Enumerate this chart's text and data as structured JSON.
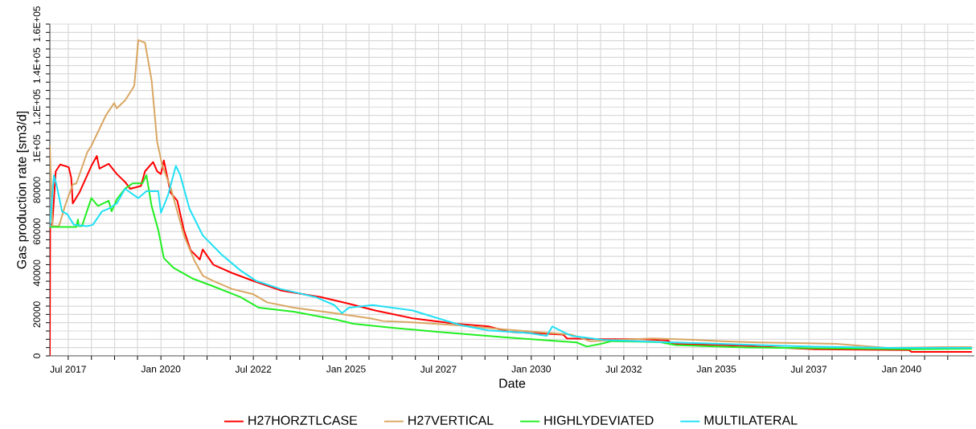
{
  "chart_data": {
    "type": "line",
    "xlabel": "Date",
    "ylabel": "Gas production rate [sm3/d]",
    "xlim": [
      "2017-01-01",
      "2041-12-20"
    ],
    "xticks": [
      {
        "value": "2017-07-01",
        "label": "Jul 2017"
      },
      {
        "value": "2018-02-15",
        "label": null
      },
      {
        "value": "2018-10-01",
        "label": null
      },
      {
        "value": "2019-05-15",
        "label": null
      },
      {
        "value": "2020-01-01",
        "label": "Jan 2020"
      },
      {
        "value": "2020-08-15",
        "label": null
      },
      {
        "value": "2021-04-01",
        "label": null
      },
      {
        "value": "2021-11-15",
        "label": null
      },
      {
        "value": "2022-07-01",
        "label": "Jul 2022"
      },
      {
        "value": "2023-02-15",
        "label": null
      },
      {
        "value": "2023-10-01",
        "label": null
      },
      {
        "value": "2024-05-15",
        "label": null
      },
      {
        "value": "2025-01-01",
        "label": "Jan 2025"
      },
      {
        "value": "2025-08-15",
        "label": null
      },
      {
        "value": "2026-04-01",
        "label": null
      },
      {
        "value": "2026-11-15",
        "label": null
      },
      {
        "value": "2027-07-01",
        "label": "Jul 2027"
      },
      {
        "value": "2028-02-15",
        "label": null
      },
      {
        "value": "2028-10-01",
        "label": null
      },
      {
        "value": "2029-05-15",
        "label": null
      },
      {
        "value": "2030-01-01",
        "label": "Jan 2030"
      },
      {
        "value": "2030-08-15",
        "label": null
      },
      {
        "value": "2031-04-01",
        "label": null
      },
      {
        "value": "2031-11-15",
        "label": null
      },
      {
        "value": "2032-07-01",
        "label": "Jul 2032"
      },
      {
        "value": "2033-02-15",
        "label": null
      },
      {
        "value": "2033-10-01",
        "label": null
      },
      {
        "value": "2034-05-15",
        "label": null
      },
      {
        "value": "2035-01-01",
        "label": "Jan 2035"
      },
      {
        "value": "2035-08-15",
        "label": null
      },
      {
        "value": "2036-04-01",
        "label": null
      },
      {
        "value": "2036-11-15",
        "label": null
      },
      {
        "value": "2037-07-01",
        "label": "Jul 2037"
      },
      {
        "value": "2038-02-15",
        "label": null
      },
      {
        "value": "2038-10-01",
        "label": null
      },
      {
        "value": "2039-05-15",
        "label": null
      },
      {
        "value": "2040-01-01",
        "label": "Jan 2040"
      },
      {
        "value": "2040-08-15",
        "label": null
      },
      {
        "value": "2041-04-01",
        "label": null
      }
    ],
    "ylim": [
      0,
      160000
    ],
    "yticks": [
      0,
      {
        "value": 4000,
        "label": null
      },
      {
        "value": 8000,
        "label": null
      },
      {
        "value": 12000,
        "label": null
      },
      {
        "value": 16000,
        "label": null
      },
      20000,
      {
        "value": 24000,
        "label": null
      },
      {
        "value": 28000,
        "label": null
      },
      {
        "value": 32000,
        "label": null
      },
      {
        "value": 36000,
        "label": null
      },
      40000,
      {
        "value": 44000,
        "label": null
      },
      {
        "value": 48000,
        "label": null
      },
      {
        "value": 52000,
        "label": null
      },
      {
        "value": 56000,
        "label": null
      },
      60000,
      {
        "value": 64000,
        "label": null
      },
      {
        "value": 68000,
        "label": null
      },
      {
        "value": 72000,
        "label": null
      },
      {
        "value": 76000,
        "label": null
      },
      80000,
      {
        "value": 84000,
        "label": null
      },
      {
        "value": 88000,
        "label": null
      },
      {
        "value": 92000,
        "label": null
      },
      {
        "value": 96000,
        "label": null
      },
      {
        "value": 100000,
        "label": "1E+05"
      },
      {
        "value": 104000,
        "label": null
      },
      {
        "value": 108000,
        "label": null
      },
      {
        "value": 112000,
        "label": null
      },
      {
        "value": 116000,
        "label": null
      },
      {
        "value": 120000,
        "label": "1.2E+05"
      },
      {
        "value": 124000,
        "label": null
      },
      {
        "value": 128000,
        "label": null
      },
      {
        "value": 132000,
        "label": null
      },
      {
        "value": 136000,
        "label": null
      },
      {
        "value": 140000,
        "label": "1.4E+05"
      },
      {
        "value": 144000,
        "label": null
      },
      {
        "value": 148000,
        "label": null
      },
      {
        "value": 152000,
        "label": null
      },
      {
        "value": 156000,
        "label": null
      },
      {
        "value": 160000,
        "label": "1.6E+05"
      }
    ],
    "grid": true,
    "legend": "bottom",
    "marker": "none",
    "line_style": "solid",
    "series": [
      {
        "name": "H27HORZTLCASE",
        "color": "#ff0000",
        "x": [
          "2017-01-01",
          "2017-01-04",
          "2017-01-27",
          "2017-02-28",
          "2017-04-13",
          "2017-07-06",
          "2017-07-31",
          "2017-08-15",
          "2017-10-19",
          "2018-02-14",
          "2018-04-09",
          "2018-05-05",
          "2018-08-04",
          "2018-10-23",
          "2019-01-12",
          "2019-03-03",
          "2019-06-18",
          "2019-07-28",
          "2019-10-16",
          "2019-11-25",
          "2020-01-01",
          "2020-01-30",
          "2020-04-05",
          "2020-06-10",
          "2020-08-15",
          "2020-10-19",
          "2021-01-19",
          "2021-02-17",
          "2021-06-03",
          "2021-12-02",
          "2022-07-02",
          "2023-03-25",
          "2024-04-24",
          "2024-10-01",
          "2025-01-27",
          "2025-10-16",
          "2026-10-19",
          "2027-12-20",
          "2028-11-03",
          "2029-05-27",
          "2030-11-10",
          "2030-12-20",
          "2031-12-09",
          "2033-01-12",
          "2033-09-06",
          "2033-10-31",
          "2035-08-22",
          "2036-08-26",
          "2037-08-30",
          "2040-03-14",
          "2040-04-09",
          "2041-11-25"
        ],
        "values": [
          0,
          62600,
          64500,
          89000,
          92300,
          91000,
          85800,
          73500,
          78700,
          91600,
          96400,
          90300,
          92600,
          87700,
          83900,
          80600,
          81900,
          89000,
          93500,
          89000,
          87700,
          94200,
          78700,
          74800,
          60600,
          51000,
          46500,
          51300,
          43900,
          40000,
          36100,
          31600,
          28400,
          26500,
          25200,
          21900,
          18100,
          15500,
          14200,
          11600,
          10300,
          8400,
          8000,
          8000,
          7500,
          5800,
          4900,
          4100,
          3200,
          2800,
          1900,
          1900
        ]
      },
      {
        "name": "H27VERTICAL",
        "color": "#d9a763",
        "x": [
          "2017-01-01",
          "2017-01-27",
          "2017-04-01",
          "2017-06-07",
          "2017-08-15",
          "2017-09-20",
          "2018-01-04",
          "2018-02-14",
          "2018-07-09",
          "2018-09-27",
          "2018-10-23",
          "2019-01-12",
          "2019-03-29",
          "2019-04-13",
          "2019-05-23",
          "2019-07-28",
          "2019-10-01",
          "2019-11-25",
          "2020-01-15",
          "2020-04-05",
          "2020-08-15",
          "2020-11-28",
          "2021-02-17",
          "2021-06-03",
          "2021-12-02",
          "2022-07-02",
          "2022-11-14",
          "2023-08-04",
          "2024-09-06",
          "2025-08-26",
          "2026-01-01",
          "2026-11-18",
          "2027-12-20",
          "2029-05-27",
          "2031-01-30",
          "2031-07-31",
          "2033-04-01",
          "2034-05-27",
          "2035-02-21",
          "2036-02-21",
          "2038-03-29",
          "2039-08-08",
          "2041-01-27",
          "2041-11-25"
        ],
        "values": [
          101300,
          62600,
          62600,
          73500,
          82600,
          83200,
          98100,
          101300,
          116100,
          121900,
          119400,
          123200,
          129000,
          130300,
          152300,
          151000,
          132900,
          103200,
          91600,
          81300,
          58100,
          45800,
          38700,
          36100,
          32300,
          29700,
          25800,
          23200,
          20600,
          18100,
          16800,
          16100,
          14800,
          12600,
          10300,
          7100,
          8400,
          7700,
          7100,
          6500,
          5800,
          3900,
          4300,
          4300
        ]
      },
      {
        "name": "HIGHLYDEVIATED",
        "color": "#22ee22",
        "x": [
          "2017-01-01",
          "2017-09-20",
          "2017-10-05",
          "2017-10-12",
          "2017-11-14",
          "2018-02-14",
          "2018-04-20",
          "2018-08-04",
          "2018-09-02",
          "2018-10-23",
          "2019-01-12",
          "2019-03-29",
          "2019-07-02",
          "2019-08-11",
          "2019-10-01",
          "2019-12-06",
          "2020-01-30",
          "2020-05-01",
          "2020-11-03",
          "2021-06-03",
          "2022-02-21",
          "2022-08-26",
          "2023-08-04",
          "2024-10-01",
          "2025-03-14",
          "2026-04-20",
          "2027-06-14",
          "2029-05-27",
          "2031-03-25",
          "2031-07-02",
          "2031-11-18",
          "2032-02-28",
          "2033-06-18",
          "2033-11-25",
          "2035-10-12",
          "2040-04-09",
          "2041-11-25"
        ],
        "values": [
          62200,
          62200,
          65800,
          62600,
          62600,
          76100,
          72300,
          74800,
          69700,
          75500,
          80600,
          83200,
          83200,
          87100,
          72300,
          60600,
          47100,
          42600,
          37400,
          33500,
          28400,
          23200,
          21300,
          17400,
          15500,
          13500,
          11600,
          8800,
          6500,
          4500,
          5800,
          7100,
          6700,
          5200,
          4100,
          3200,
          3500
        ]
      },
      {
        "name": "MULTILATERAL",
        "color": "#22e0f5",
        "x": [
          "2017-01-01",
          "2017-02-10",
          "2017-03-07",
          "2017-05-01",
          "2017-06-21",
          "2017-08-26",
          "2018-01-04",
          "2018-02-28",
          "2018-05-30",
          "2018-08-04",
          "2018-10-23",
          "2019-01-12",
          "2019-05-23",
          "2019-08-11",
          "2019-12-06",
          "2020-01-01",
          "2020-03-10",
          "2020-05-27",
          "2020-07-06",
          "2020-10-08",
          "2021-02-17",
          "2021-08-19",
          "2022-02-21",
          "2022-07-31",
          "2023-03-25",
          "2024-03-03",
          "2024-09-06",
          "2024-11-21",
          "2025-01-27",
          "2025-09-20",
          "2026-10-19",
          "2027-05-19",
          "2028-02-06",
          "2028-11-03",
          "2029-12-02",
          "2030-06-03",
          "2030-07-28",
          "2030-11-10",
          "2031-01-30",
          "2031-12-09",
          "2033-06-18",
          "2033-11-25",
          "2036-08-26",
          "2037-08-30",
          "2039-09-09",
          "2041-11-25"
        ],
        "values": [
          62200,
          87100,
          82600,
          69700,
          68400,
          63200,
          62600,
          63200,
          69700,
          71000,
          73500,
          80600,
          76100,
          79400,
          79400,
          69000,
          77400,
          91600,
          87700,
          71000,
          58100,
          49000,
          41300,
          36100,
          32300,
          28400,
          24500,
          20600,
          23200,
          24500,
          21900,
          18700,
          14800,
          12300,
          11000,
          9700,
          14200,
          11600,
          9700,
          7700,
          6700,
          6500,
          4900,
          4500,
          3900,
          3900
        ]
      }
    ]
  }
}
